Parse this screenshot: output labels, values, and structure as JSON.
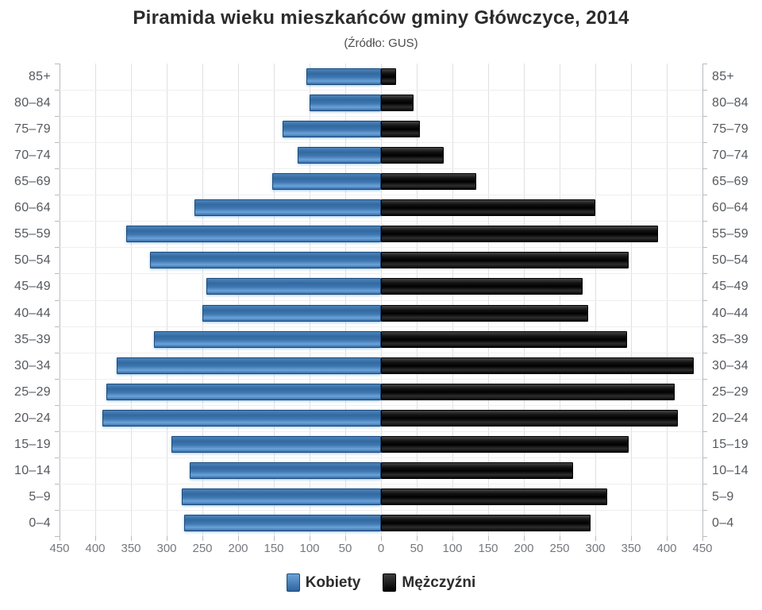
{
  "title": "Piramida wieku mieszkańców gminy Główczyce, 2014",
  "subtitle": "(Źródło: GUS)",
  "legend": {
    "women": "Kobiety",
    "men": "Mężczyźni"
  },
  "colors": {
    "women_bar": "#3f78b2",
    "women_bar_border": "#1c4a7b",
    "men_bar": "#111111",
    "men_bar_border": "#000000",
    "gridline": "#e0e0e0",
    "axis": "#b7bbbf",
    "age_label": "#55595e",
    "x_tick_label": "#75797e",
    "title_text": "#2c2c2c"
  },
  "chart_data": {
    "type": "bar",
    "variant": "population-pyramid",
    "title": "Piramida wieku mieszkańców gminy Główczyce, 2014",
    "subtitle": "(Źródło: GUS)",
    "categories": [
      "85+",
      "80–84",
      "75–79",
      "70–74",
      "65–69",
      "60–64",
      "55–59",
      "50–54",
      "45–49",
      "40–44",
      "35–39",
      "30–34",
      "25–29",
      "20–24",
      "15–19",
      "10–14",
      "5–9",
      "0–4"
    ],
    "series": [
      {
        "name": "Kobiety",
        "side": "left",
        "values": [
          104,
          100,
          138,
          117,
          152,
          261,
          357,
          323,
          244,
          250,
          318,
          370,
          384,
          390,
          293,
          268,
          279,
          276
        ]
      },
      {
        "name": "Mężczyźni",
        "side": "right",
        "values": [
          21,
          45,
          54,
          88,
          133,
          300,
          388,
          347,
          282,
          290,
          344,
          438,
          411,
          415,
          347,
          269,
          317,
          293
        ]
      }
    ],
    "x_ticks": [
      "450",
      "400",
      "350",
      "300",
      "250",
      "200",
      "150",
      "100",
      "50",
      "0",
      "50",
      "100",
      "150",
      "200",
      "250",
      "300",
      "350",
      "400",
      "450"
    ],
    "x_max_each_side": 450,
    "grid": true,
    "legend_position": "bottom"
  }
}
